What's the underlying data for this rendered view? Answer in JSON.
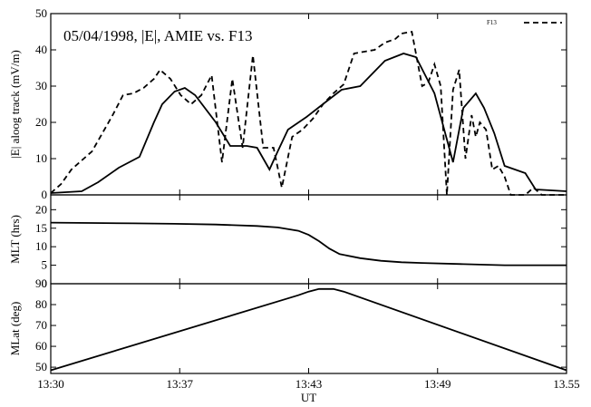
{
  "chart_data": {
    "type": "line",
    "title": "05/04/1998, |E|, AMIE vs. F13",
    "xlabel": "UT",
    "x_ticks": [
      "13:30",
      "13:37",
      "13:43",
      "13:49",
      "13.55"
    ],
    "x_range_minutes": [
      0,
      25
    ],
    "legend": {
      "entries": [
        {
          "label": "F13",
          "style": "dashed"
        }
      ],
      "position": "top-right"
    },
    "panels": [
      {
        "ylabel": "|E| aloog track (mV/m)",
        "ylim": [
          0,
          50
        ],
        "yticks": [
          0,
          10,
          20,
          30,
          40,
          50
        ],
        "series": [
          {
            "style": "solid",
            "x": [
              0,
              1.5,
              2.3,
              3.3,
              4.3,
              5.0,
              5.4,
              6.0,
              6.5,
              7.0,
              8.0,
              8.7,
              9.5,
              10.0,
              10.6,
              11.0,
              11.5,
              12.4,
              13.3,
              14.1,
              15.0,
              16.2,
              17.1,
              17.7,
              18.6,
              19.5,
              20.0,
              20.6,
              21.0,
              21.5,
              22.0,
              22.5,
              23.0,
              23.5,
              25.0
            ],
            "y": [
              0.5,
              1,
              3.5,
              7.5,
              10.5,
              20,
              25,
              28.5,
              29.5,
              27.5,
              20,
              13.5,
              13.5,
              13,
              7,
              12,
              18,
              21.5,
              25.5,
              29,
              30,
              37,
              39,
              38,
              28,
              9,
              24,
              28,
              24,
              17,
              8,
              7,
              6,
              1.5,
              1
            ]
          },
          {
            "name": "F13",
            "style": "dashed",
            "x": [
              0,
              0.5,
              1.0,
              2.0,
              3.0,
              3.5,
              4.0,
              4.5,
              5.0,
              5.3,
              5.8,
              6.3,
              6.8,
              7.3,
              7.8,
              8.3,
              8.8,
              9.3,
              9.8,
              10.3,
              10.8,
              11.2,
              11.7,
              12.2,
              12.7,
              13.2,
              13.7,
              14.2,
              14.7,
              15.2,
              15.7,
              16.2,
              16.7,
              17.0,
              17.5,
              18.0,
              18.3,
              18.6,
              18.9,
              19.2,
              19.5,
              19.8,
              20.1,
              20.4,
              20.6,
              20.8,
              21.1,
              21.4,
              21.7,
              22.0,
              22.3,
              22.6,
              23.0,
              23.4,
              23.8,
              24.2,
              25.0
            ],
            "y": [
              0.5,
              3,
              7,
              12,
              22,
              27.5,
              28,
              29.5,
              32,
              34.5,
              32,
              27.5,
              25,
              27.5,
              33,
              9,
              32,
              13,
              38.5,
              13,
              13,
              2,
              16,
              18,
              21,
              25,
              28,
              30.5,
              39,
              39.5,
              40,
              42,
              43,
              44.5,
              45,
              30,
              31,
              36,
              30,
              0,
              29,
              34.5,
              10,
              22,
              16,
              20,
              18,
              7,
              8,
              5,
              0,
              0,
              0,
              2,
              0,
              0,
              0
            ]
          }
        ]
      },
      {
        "ylabel": "MLT (hrs)",
        "ylim": [
          0,
          24
        ],
        "yticks": [
          0,
          5,
          10,
          15,
          20
        ],
        "series": [
          {
            "style": "solid",
            "x": [
              0,
              2,
              4,
              6,
              8,
              9,
              10,
              11,
              12,
              12.5,
              13,
              13.5,
              14,
              15,
              16,
              17,
              18,
              20,
              22,
              25
            ],
            "y": [
              16.5,
              16.4,
              16.3,
              16.2,
              16.0,
              15.8,
              15.6,
              15.2,
              14.3,
              13.2,
              11.5,
              9.5,
              8.0,
              6.9,
              6.2,
              5.8,
              5.6,
              5.3,
              5.0,
              5.0
            ]
          }
        ]
      },
      {
        "ylabel": "MLat (deg)",
        "ylim": [
          47,
          90
        ],
        "yticks": [
          50,
          60,
          70,
          80,
          90
        ],
        "series": [
          {
            "style": "solid",
            "x": [
              0,
              12.0,
              12.5,
              13.0,
              13.3,
              13.7,
              14.2,
              25
            ],
            "y": [
              48.5,
              84.5,
              86.2,
              87.5,
              87.5,
              87.5,
              86.2,
              48.5
            ]
          }
        ]
      }
    ]
  }
}
